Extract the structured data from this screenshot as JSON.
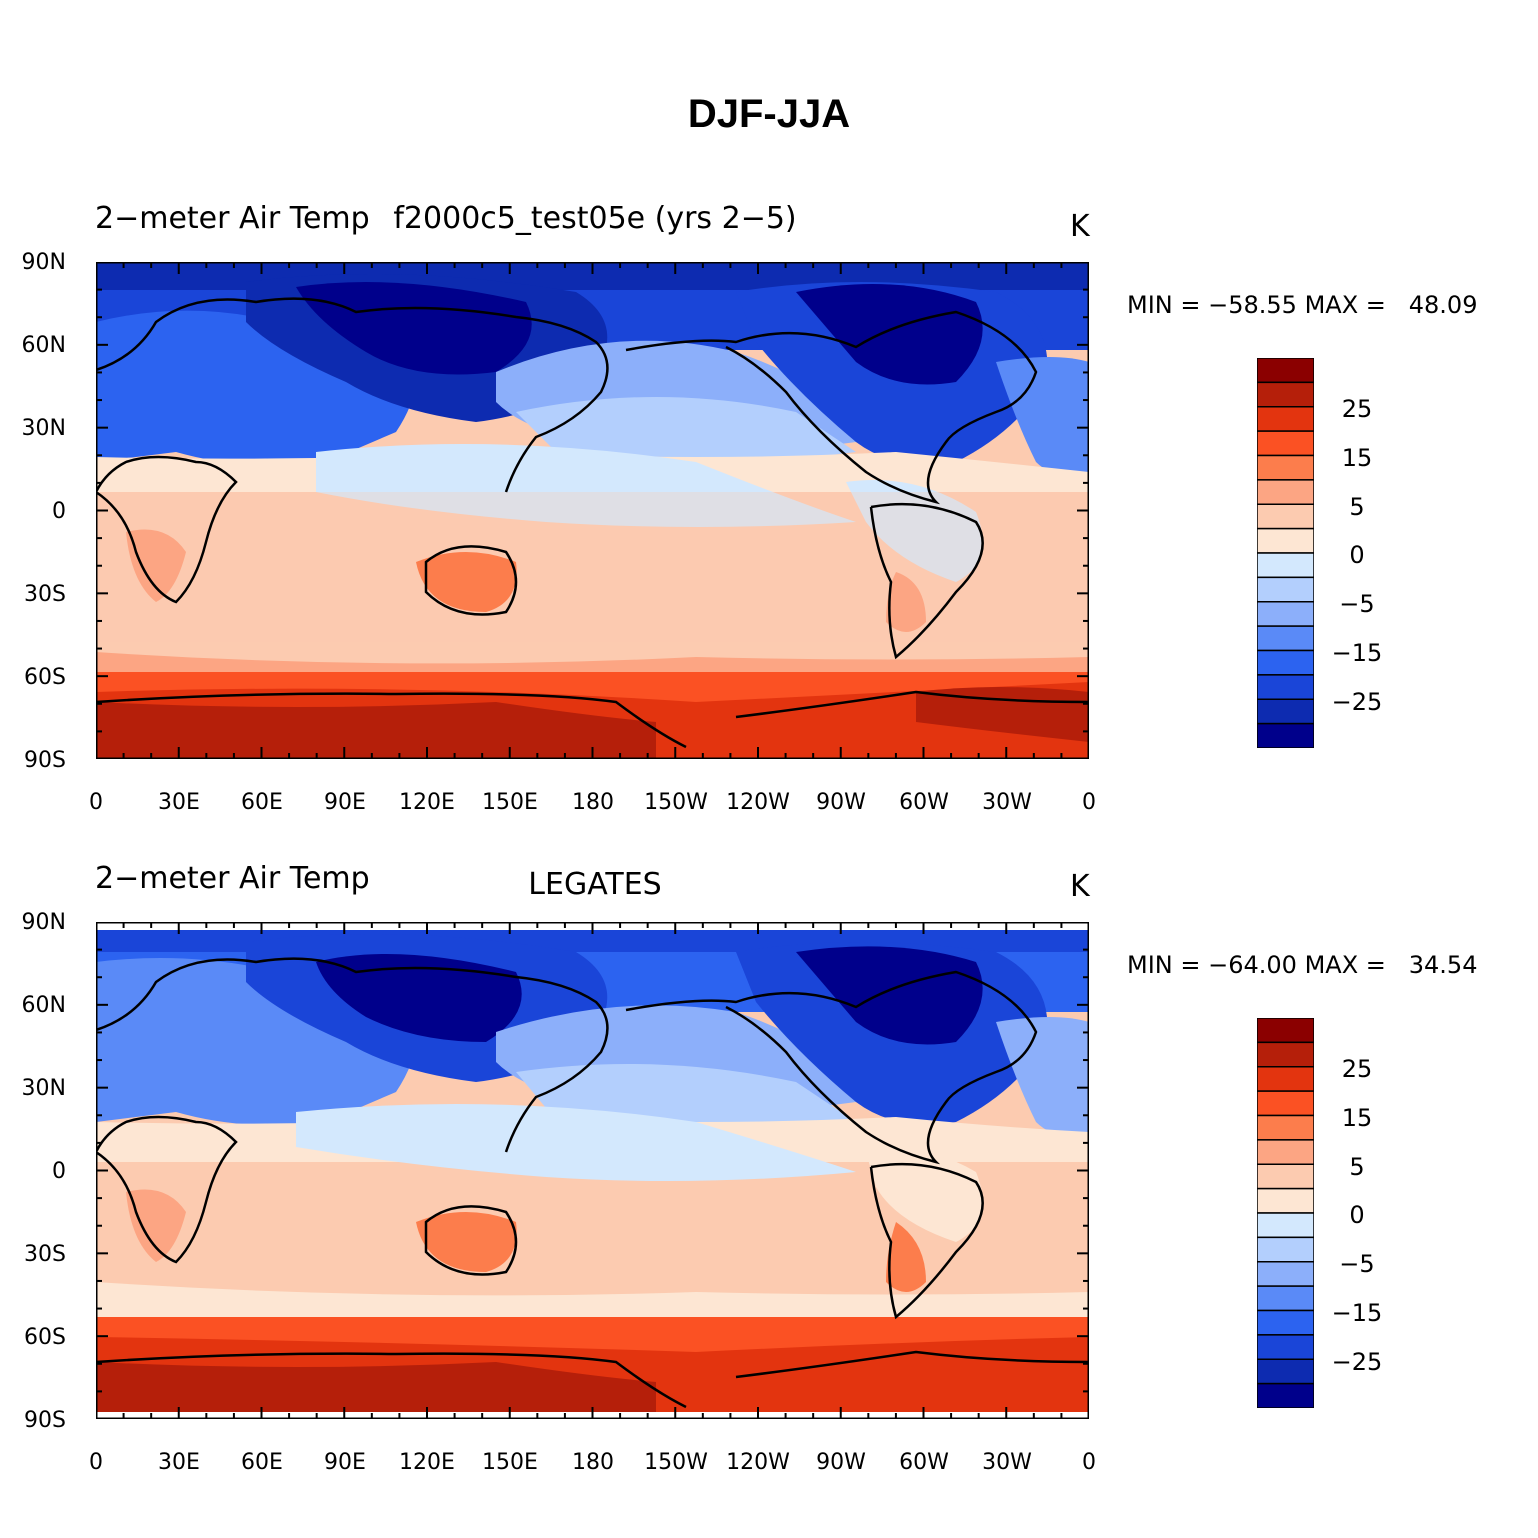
{
  "figure": {
    "title": "DJF-JJA"
  },
  "panels": [
    {
      "id": "model",
      "variable_label": "2−meter Air Temp",
      "case_label": "f2000c5_test05e (yrs 2−5)",
      "units": "K",
      "min_text": "MIN = −58.55",
      "max_text": "MAX =   48.09",
      "min": -58.55,
      "max": 48.09
    },
    {
      "id": "obs",
      "variable_label": "2−meter Air Temp",
      "case_label": "LEGATES",
      "units": "K",
      "min_text": "MIN = −64.00",
      "max_text": "MAX =   34.54",
      "min": -64.0,
      "max": 34.54
    }
  ],
  "map": {
    "lat_ticks": [
      "90N",
      "60N",
      "30N",
      "0",
      "30S",
      "60S",
      "90S"
    ],
    "lon_ticks": [
      "0",
      "30E",
      "60E",
      "90E",
      "120E",
      "150E",
      "180",
      "150W",
      "120W",
      "90W",
      "60W",
      "30W",
      "0"
    ],
    "lon_range": [
      0,
      360
    ],
    "lat_range": [
      -90,
      90
    ]
  },
  "colorbar": {
    "labels": [
      "25",
      "15",
      "5",
      "0",
      "−5",
      "−15",
      "−25"
    ],
    "colors": [
      "#8b0000",
      "#b51f0a",
      "#e3340f",
      "#fb5123",
      "#fc7d4c",
      "#fca583",
      "#fccbb0",
      "#fde6d3",
      "#d3e8fd",
      "#b3cffd",
      "#8caffa",
      "#5a8af7",
      "#2c63f0",
      "#1a45d8",
      "#0d2bb0",
      "#00008b"
    ]
  },
  "chart_data": [
    {
      "type": "heatmap",
      "title": "DJF-JJA",
      "left_title": "2−meter Air Temp",
      "center_title": "f2000c5_test05e (yrs 2−5)",
      "units": "K",
      "min": -58.55,
      "max": 48.09,
      "colorbar_ticks": [
        25,
        15,
        5,
        0,
        -5,
        -15,
        -25
      ],
      "x_ticks": [
        "0",
        "30E",
        "60E",
        "90E",
        "120E",
        "150E",
        "180",
        "150W",
        "120W",
        "90W",
        "60W",
        "30W",
        "0"
      ],
      "y_ticks": [
        "90N",
        "60N",
        "30N",
        "0",
        "30S",
        "60S",
        "90S"
      ]
    },
    {
      "type": "heatmap",
      "title": "DJF-JJA",
      "left_title": "2−meter Air Temp",
      "center_title": "LEGATES",
      "units": "K",
      "min": -64.0,
      "max": 34.54,
      "colorbar_ticks": [
        25,
        15,
        5,
        0,
        -5,
        -15,
        -25
      ],
      "x_ticks": [
        "0",
        "30E",
        "60E",
        "90E",
        "120E",
        "150E",
        "180",
        "150W",
        "120W",
        "90W",
        "60W",
        "30W",
        "0"
      ],
      "y_ticks": [
        "90N",
        "60N",
        "30N",
        "0",
        "30S",
        "60S",
        "90S"
      ]
    }
  ]
}
